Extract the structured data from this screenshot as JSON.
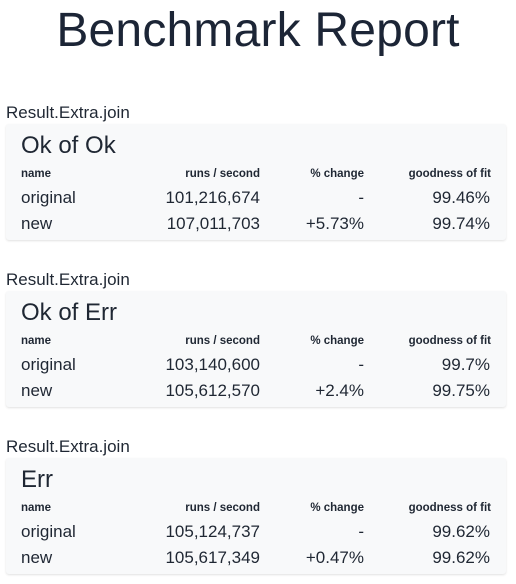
{
  "page": {
    "title": "Benchmark Report"
  },
  "columns": {
    "name": "name",
    "runs": "runs / second",
    "change": "% change",
    "fit": "goodness of fit"
  },
  "benchmarks": [
    {
      "group": "Result.Extra.join",
      "title": "Ok of Ok",
      "rows": [
        {
          "name": "original",
          "runs": "101,216,674",
          "change": "-",
          "fit": "99.46%"
        },
        {
          "name": "new",
          "runs": "107,011,703",
          "change": "+5.73%",
          "fit": "99.74%"
        }
      ]
    },
    {
      "group": "Result.Extra.join",
      "title": "Ok of Err",
      "rows": [
        {
          "name": "original",
          "runs": "103,140,600",
          "change": "-",
          "fit": "99.7%"
        },
        {
          "name": "new",
          "runs": "105,612,570",
          "change": "+2.4%",
          "fit": "99.75%"
        }
      ]
    },
    {
      "group": "Result.Extra.join",
      "title": "Err",
      "rows": [
        {
          "name": "original",
          "runs": "105,124,737",
          "change": "-",
          "fit": "99.62%"
        },
        {
          "name": "new",
          "runs": "105,617,349",
          "change": "+0.47%",
          "fit": "99.62%"
        }
      ]
    }
  ]
}
